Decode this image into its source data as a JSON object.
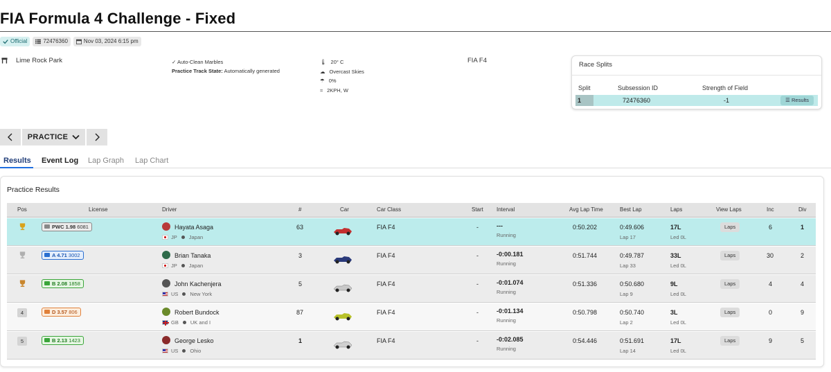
{
  "header": {
    "title": "FIA Formula 4 Challenge - Fixed",
    "badges": {
      "official": "Official",
      "subsession_id": "72476360",
      "date": "Nov 03, 2024 6:15 pm"
    }
  },
  "session_info": {
    "track": "Lime Rock Park",
    "auto_clean": "Auto-Clean Marbles",
    "practice_track_state_label": "Practice Track State:",
    "practice_track_state_value": "Automatically generated",
    "temperature": "20° C",
    "skies": "Overcast Skies",
    "rain": "0%",
    "wind": "2KPH, W",
    "series": "FIA F4"
  },
  "race_splits": {
    "title": "Race Splits",
    "headers": {
      "split": "Split",
      "subsession_id": "Subsession ID",
      "sof": "Strength of Field"
    },
    "row": {
      "split": "1",
      "subsession_id": "72476360",
      "sof": "-1",
      "button": "Results"
    }
  },
  "session_nav": {
    "prev": "<",
    "session": "PRACTICE",
    "next": ">"
  },
  "tabs": [
    {
      "label": "Results"
    },
    {
      "label": "Event Log"
    },
    {
      "label": "Lap Graph"
    },
    {
      "label": "Lap Chart"
    }
  ],
  "results": {
    "title": "Practice Results",
    "columns": {
      "pos": "Pos",
      "license": "License",
      "driver": "Driver",
      "num": "#",
      "car": "Car",
      "car_class": "Car Class",
      "start": "Start",
      "interval": "Interval",
      "avg_lap": "Avg Lap Time",
      "best_lap": "Best Lap",
      "laps": "Laps",
      "view_laps": "View Laps",
      "inc": "Inc",
      "div": "Div"
    },
    "rows": [
      {
        "pos": "",
        "license_class": "PWC 1.98",
        "irating": "6081",
        "driver": "Hayata Asaga",
        "country": "JP",
        "location": "Japan",
        "num": "63",
        "car_class": "FIA F4",
        "start": "-",
        "interval": "---",
        "status": "Running",
        "avg_lap": "0:50.202",
        "best_lap": "0:49.606",
        "best_lap_num": "Lap 17",
        "laps": "17L",
        "led": "Led 0L",
        "view_laps": "Laps",
        "inc": "6",
        "div": "1"
      },
      {
        "pos": "",
        "license_class": "A 4.71",
        "irating": "3002",
        "driver": "Brian Tanaka",
        "country": "JP",
        "location": "Japan",
        "num": "3",
        "car_class": "FIA F4",
        "start": "-",
        "interval": "-0:00.181",
        "status": "Running",
        "avg_lap": "0:51.744",
        "best_lap": "0:49.787",
        "best_lap_num": "Lap 33",
        "laps": "33L",
        "led": "Led 0L",
        "view_laps": "Laps",
        "inc": "30",
        "div": "2"
      },
      {
        "pos": "",
        "license_class": "B 2.08",
        "irating": "1858",
        "driver": "John Kachenjera",
        "country": "US",
        "location": "New York",
        "num": "5",
        "car_class": "FIA F4",
        "start": "-",
        "interval": "-0:01.074",
        "status": "Running",
        "avg_lap": "0:51.336",
        "best_lap": "0:50.680",
        "best_lap_num": "Lap 9",
        "laps": "9L",
        "led": "Led 0L",
        "view_laps": "Laps",
        "inc": "4",
        "div": "4"
      },
      {
        "pos": "4",
        "license_class": "D 3.57",
        "irating": "806",
        "driver": "Robert Bundock",
        "country": "GB",
        "location": "UK and I",
        "num": "87",
        "car_class": "FIA F4",
        "start": "-",
        "interval": "-0:01.134",
        "status": "Running",
        "avg_lap": "0:50.798",
        "best_lap": "0:50.740",
        "best_lap_num": "Lap 2",
        "laps": "3L",
        "led": "Led 0L",
        "view_laps": "Laps",
        "inc": "0",
        "div": "9"
      },
      {
        "pos": "5",
        "license_class": "B 2.13",
        "irating": "1423",
        "driver": "George Lesko",
        "country": "US",
        "location": "Ohio",
        "num": "1",
        "car_class": "FIA F4",
        "start": "-",
        "interval": "-0:02.085",
        "status": "Running",
        "avg_lap": "0:54.446",
        "best_lap": "0:51.691",
        "best_lap_num": "Lap 14",
        "laps": "17L",
        "led": "Led 0L",
        "view_laps": "Laps",
        "inc": "9",
        "div": "5"
      }
    ]
  },
  "colors": {
    "highlight_row": "#bcecec",
    "tab_active": "#1f3c78",
    "gold": "#d9a21b",
    "silver": "#b0b0b0",
    "bronze": "#c9862d"
  }
}
